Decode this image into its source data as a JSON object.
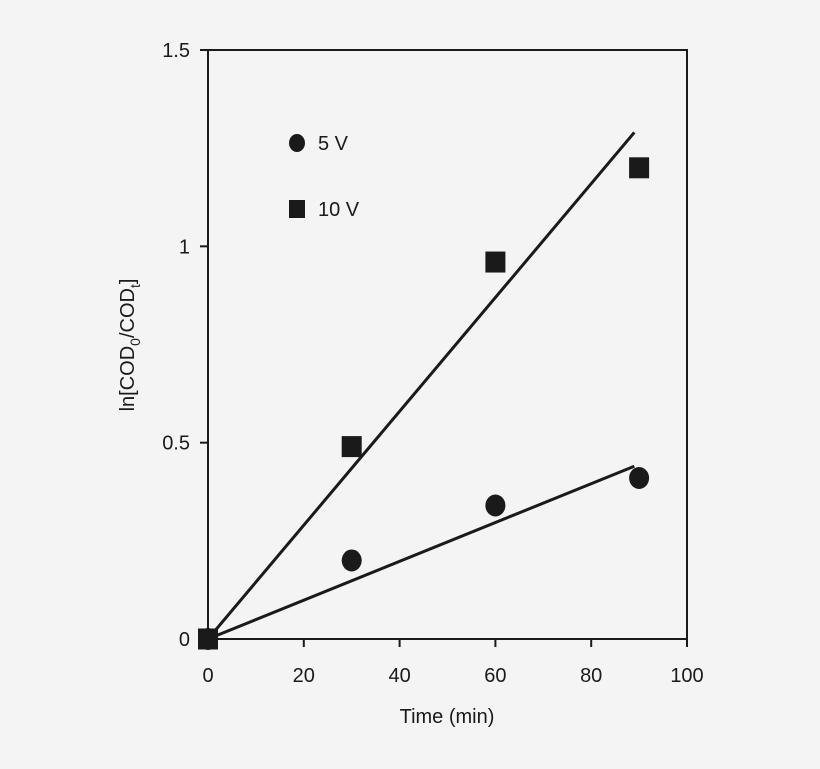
{
  "chart_data": {
    "type": "scatter",
    "title": "",
    "xlabel": "Time (min)",
    "ylabel": {
      "prefix": "ln[COD",
      "sub1": "0",
      "middle": "/COD",
      "sub2": "t",
      "suffix": "]"
    },
    "xlim": [
      0,
      100
    ],
    "ylim": [
      0,
      1.5
    ],
    "x_ticks": [
      0,
      20,
      40,
      60,
      80,
      100
    ],
    "x_tick_labels": [
      "0",
      "20",
      "40",
      "60",
      "80",
      "100"
    ],
    "y_ticks": [
      0,
      0.5,
      1,
      1.5
    ],
    "y_tick_labels": [
      "0",
      "0.5",
      "1",
      "1.5"
    ],
    "grid": false,
    "legend_position": "top-left",
    "series": [
      {
        "name": "5 V",
        "marker": "circle",
        "x": [
          0,
          30,
          60,
          90
        ],
        "y": [
          0,
          0.2,
          0.34,
          0.41
        ],
        "fit": {
          "x": [
            0,
            89
          ],
          "y": [
            0,
            0.44
          ]
        }
      },
      {
        "name": "10 V",
        "marker": "square",
        "x": [
          0,
          30,
          60,
          90
        ],
        "y": [
          0,
          0.49,
          0.96,
          1.2
        ],
        "fit": {
          "x": [
            0,
            89
          ],
          "y": [
            0,
            1.29
          ]
        }
      }
    ],
    "colors": {
      "ink": "#1a1a1a",
      "background": "#f4f4f4"
    }
  }
}
